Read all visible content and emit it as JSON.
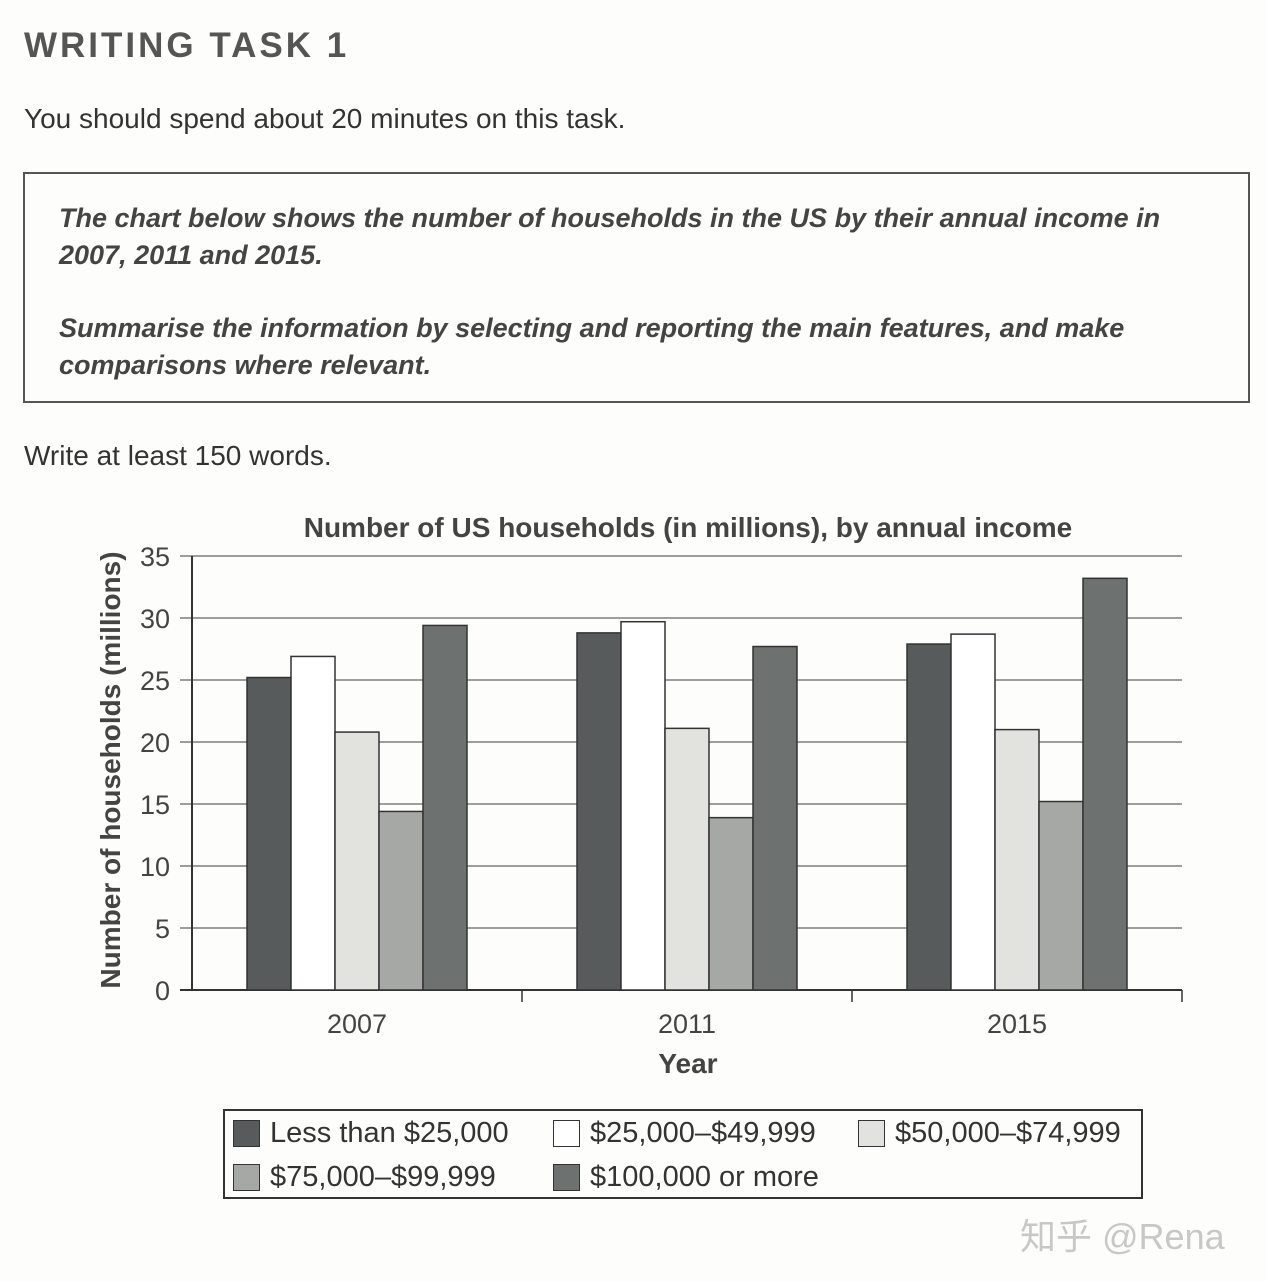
{
  "heading": "WRITING TASK 1",
  "instruction": "You should spend about 20 minutes on this task.",
  "prompt": {
    "line1": "The chart below shows the number of households in the US by their annual income in 2007, 2011 and 2015.",
    "line2": "Summarise the information by selecting and reporting the main features, and make comparisons where relevant."
  },
  "word_requirement": "Write at least 150 words.",
  "watermark": "知乎 @Rena",
  "chart_data": {
    "type": "bar",
    "title": "Number of US households (in millions), by annual income",
    "xlabel": "Year",
    "ylabel": "Number of households (millions)",
    "ylim": [
      0,
      35
    ],
    "yticks": [
      0,
      5,
      10,
      15,
      20,
      25,
      30,
      35
    ],
    "grid": true,
    "legend_position": "bottom",
    "categories": [
      "2007",
      "2011",
      "2015"
    ],
    "series": [
      {
        "name": "Less than $25,000",
        "color": "#575b5b",
        "values": [
          25.2,
          28.8,
          27.9
        ]
      },
      {
        "name": "$25,000–$49,999",
        "color": "#ffffff",
        "values": [
          26.9,
          29.7,
          28.7
        ]
      },
      {
        "name": "$50,000–$74,999",
        "color": "#e2e2de",
        "values": [
          20.8,
          21.1,
          21.0
        ]
      },
      {
        "name": "$75,000–$99,999",
        "color": "#a6a8a6",
        "values": [
          14.4,
          13.9,
          15.2
        ]
      },
      {
        "name": "$100,000 or more",
        "color": "#6d716f",
        "values": [
          29.4,
          27.7,
          33.2
        ]
      }
    ]
  }
}
